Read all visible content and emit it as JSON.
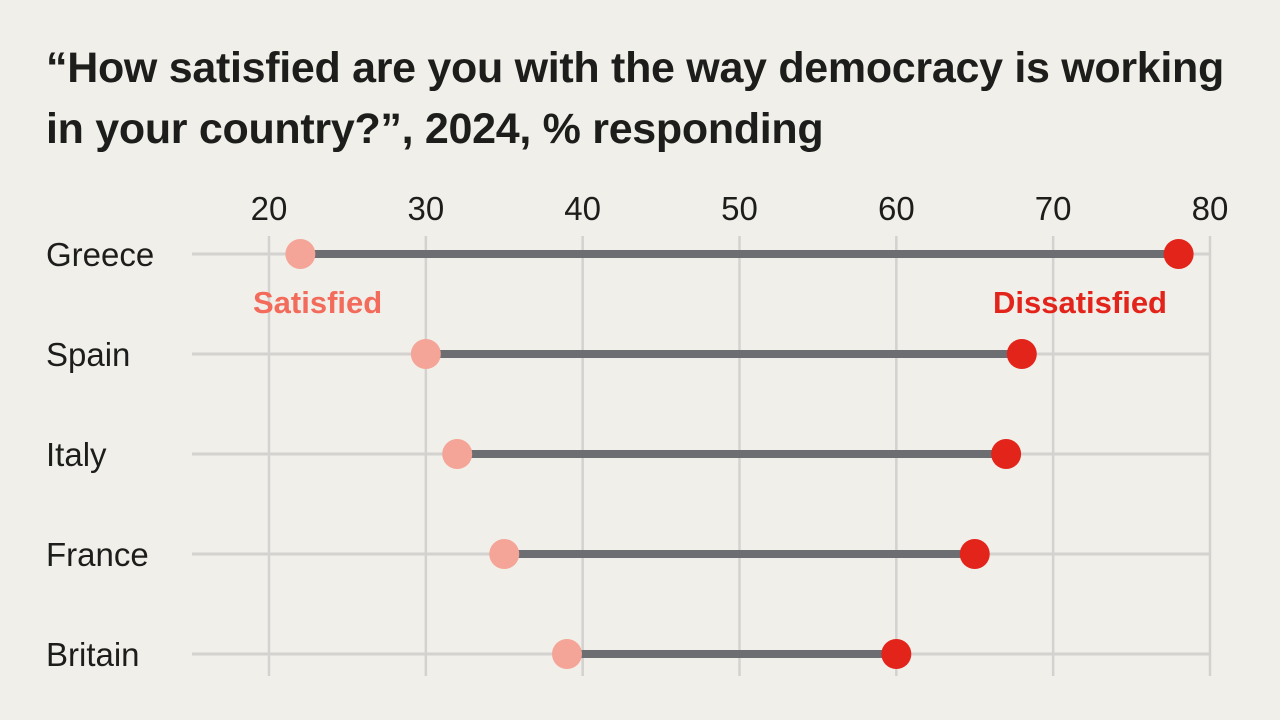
{
  "chart_data": {
    "type": "dumbbell",
    "title": "“How satisfied are you with the way democracy is working in your country?”, 2024, % responding",
    "xlim": [
      20,
      80
    ],
    "x_ticks": [
      "20",
      "30",
      "40",
      "50",
      "60",
      "70",
      "80"
    ],
    "x_tick_values": [
      20,
      30,
      40,
      50,
      60,
      70,
      80
    ],
    "categories": [
      "Greece",
      "Spain",
      "Italy",
      "France",
      "Britain"
    ],
    "series": [
      {
        "name": "Satisfied",
        "values": [
          22,
          30,
          32,
          35,
          39
        ]
      },
      {
        "name": "Dissatisfied",
        "values": [
          78,
          68,
          67,
          65,
          60
        ]
      }
    ],
    "legend": [
      "Satisfied",
      "Dissatisfied"
    ],
    "colors": {
      "satisfied": "#f4a597",
      "dissatisfied": "#e3241b",
      "connector": "#6d6e71",
      "grid": "#d3d2cf",
      "satisfied_label": "#f26b5b",
      "dissatisfied_label": "#e3241b"
    }
  }
}
